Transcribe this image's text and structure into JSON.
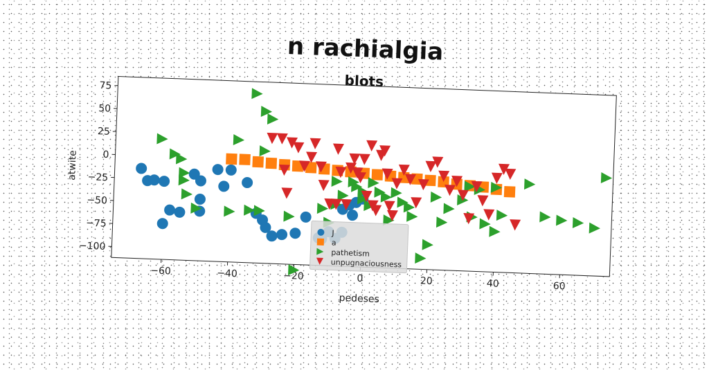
{
  "figure": {
    "suptitle": "n rachialgia"
  },
  "chart_data": {
    "type": "scatter",
    "title": "blots",
    "xlabel": "pedeses",
    "ylabel": "atwite",
    "xlim": [
      -75,
      75
    ],
    "ylim": [
      -112,
      85
    ],
    "xticks": [
      -60,
      -40,
      -20,
      0,
      20,
      40,
      60
    ],
    "yticks": [
      75,
      50,
      25,
      0,
      -25,
      -50,
      -75,
      -100
    ],
    "grid": false,
    "legend_position": "lower center",
    "series": [
      {
        "name": "J",
        "marker": "circle",
        "color": "#1f77b4",
        "points": [
          [
            -67,
            -14
          ],
          [
            -65,
            -27
          ],
          [
            -63,
            -26
          ],
          [
            -60,
            -27
          ],
          [
            -58,
            -58
          ],
          [
            -60,
            -73
          ],
          [
            -55,
            -60
          ],
          [
            -51,
            -18
          ],
          [
            -49,
            -25
          ],
          [
            -49,
            -45
          ],
          [
            -49,
            -58
          ],
          [
            -44,
            -12
          ],
          [
            -42,
            -30
          ],
          [
            -40,
            -12
          ],
          [
            -35,
            -25
          ],
          [
            -32,
            -58
          ],
          [
            -30,
            -65
          ],
          [
            -29,
            -73
          ],
          [
            -27,
            -82
          ],
          [
            -24,
            -80
          ],
          [
            -20,
            -78
          ],
          [
            -17,
            -60
          ],
          [
            -13,
            -82
          ],
          [
            -12,
            -83
          ],
          [
            -10,
            -75
          ],
          [
            -8,
            -82
          ],
          [
            -6,
            -50
          ],
          [
            -6,
            -75
          ],
          [
            -4,
            -45
          ],
          [
            -3,
            -56
          ],
          [
            0,
            -38
          ],
          [
            -2,
            -42
          ]
        ]
      },
      {
        "name": "a",
        "marker": "square",
        "color": "#ff7f0e",
        "points": [
          [
            -40,
            0
          ],
          [
            -36,
            0
          ],
          [
            -32,
            -2
          ],
          [
            -28,
            -3
          ],
          [
            -24,
            -4
          ],
          [
            -20,
            -5
          ],
          [
            -16,
            -6
          ],
          [
            -12,
            -7
          ],
          [
            -8,
            -8
          ],
          [
            -4,
            -9
          ],
          [
            0,
            -10
          ],
          [
            4,
            -11
          ],
          [
            8,
            -12
          ],
          [
            12,
            -13
          ],
          [
            16,
            -14
          ],
          [
            20,
            -15
          ],
          [
            24,
            -16
          ],
          [
            28,
            -18
          ],
          [
            32,
            -19
          ],
          [
            36,
            -20
          ],
          [
            40,
            -22
          ],
          [
            44,
            -24
          ]
        ]
      },
      {
        "name": "pathetism",
        "marker": "triangle-right",
        "color": "#2ca02c",
        "points": [
          [
            -61,
            19
          ],
          [
            -57,
            3
          ],
          [
            -55,
            -2
          ],
          [
            -54,
            -25
          ],
          [
            -54,
            -17
          ],
          [
            -53,
            -40
          ],
          [
            -50,
            -55
          ],
          [
            -40,
            -57
          ],
          [
            -38,
            21
          ],
          [
            -34,
            -55
          ],
          [
            -33,
            72
          ],
          [
            -31,
            -55
          ],
          [
            -30,
            53
          ],
          [
            -30,
            10
          ],
          [
            -28,
            45
          ],
          [
            -22,
            -60
          ],
          [
            -20,
            -118
          ],
          [
            -12,
            -50
          ],
          [
            -10,
            -65
          ],
          [
            -8,
            -45
          ],
          [
            -8,
            -20
          ],
          [
            -6,
            -35
          ],
          [
            -3,
            -20
          ],
          [
            -2,
            -25
          ],
          [
            0,
            -30
          ],
          [
            0,
            -38
          ],
          [
            2,
            -45
          ],
          [
            3,
            -20
          ],
          [
            5,
            -30
          ],
          [
            7,
            -35
          ],
          [
            8,
            -60
          ],
          [
            10,
            -30
          ],
          [
            12,
            -40
          ],
          [
            14,
            -45
          ],
          [
            15,
            -55
          ],
          [
            18,
            -100
          ],
          [
            20,
            -85
          ],
          [
            22,
            -33
          ],
          [
            24,
            -60
          ],
          [
            26,
            -45
          ],
          [
            30,
            -35
          ],
          [
            32,
            -20
          ],
          [
            33,
            -53
          ],
          [
            35,
            -23
          ],
          [
            37,
            -60
          ],
          [
            40,
            -68
          ],
          [
            40,
            -20
          ],
          [
            42,
            -50
          ],
          [
            50,
            -15
          ],
          [
            55,
            -50
          ],
          [
            60,
            -53
          ],
          [
            65,
            -55
          ],
          [
            70,
            -60
          ],
          [
            73,
            -5
          ]
        ]
      },
      {
        "name": "unpugnaciousness",
        "marker": "triangle-down",
        "color": "#d62728",
        "points": [
          [
            -28,
            24
          ],
          [
            -25,
            24
          ],
          [
            -24,
            -10
          ],
          [
            -23,
            -35
          ],
          [
            -22,
            20
          ],
          [
            -20,
            15
          ],
          [
            -18,
            -5
          ],
          [
            -16,
            5
          ],
          [
            -15,
            20
          ],
          [
            -13,
            -5
          ],
          [
            -12,
            -25
          ],
          [
            -10,
            -45
          ],
          [
            -8,
            -45
          ],
          [
            -8,
            15
          ],
          [
            -7,
            -10
          ],
          [
            -5,
            -45
          ],
          [
            -4,
            -5
          ],
          [
            -3,
            5
          ],
          [
            -2,
            -10
          ],
          [
            -1,
            -15
          ],
          [
            0,
            5
          ],
          [
            1,
            -35
          ],
          [
            2,
            20
          ],
          [
            3,
            -45
          ],
          [
            4,
            -50
          ],
          [
            5,
            10
          ],
          [
            6,
            15
          ],
          [
            7,
            -10
          ],
          [
            8,
            -45
          ],
          [
            9,
            -55
          ],
          [
            10,
            -20
          ],
          [
            12,
            -5
          ],
          [
            14,
            -15
          ],
          [
            16,
            -40
          ],
          [
            18,
            -20
          ],
          [
            20,
            0
          ],
          [
            22,
            5
          ],
          [
            24,
            -10
          ],
          [
            26,
            -25
          ],
          [
            28,
            -15
          ],
          [
            30,
            -30
          ],
          [
            32,
            -55
          ],
          [
            34,
            -20
          ],
          [
            36,
            -35
          ],
          [
            38,
            -50
          ],
          [
            40,
            -10
          ],
          [
            42,
            0
          ],
          [
            44,
            -5
          ],
          [
            46,
            -60
          ]
        ]
      }
    ]
  }
}
